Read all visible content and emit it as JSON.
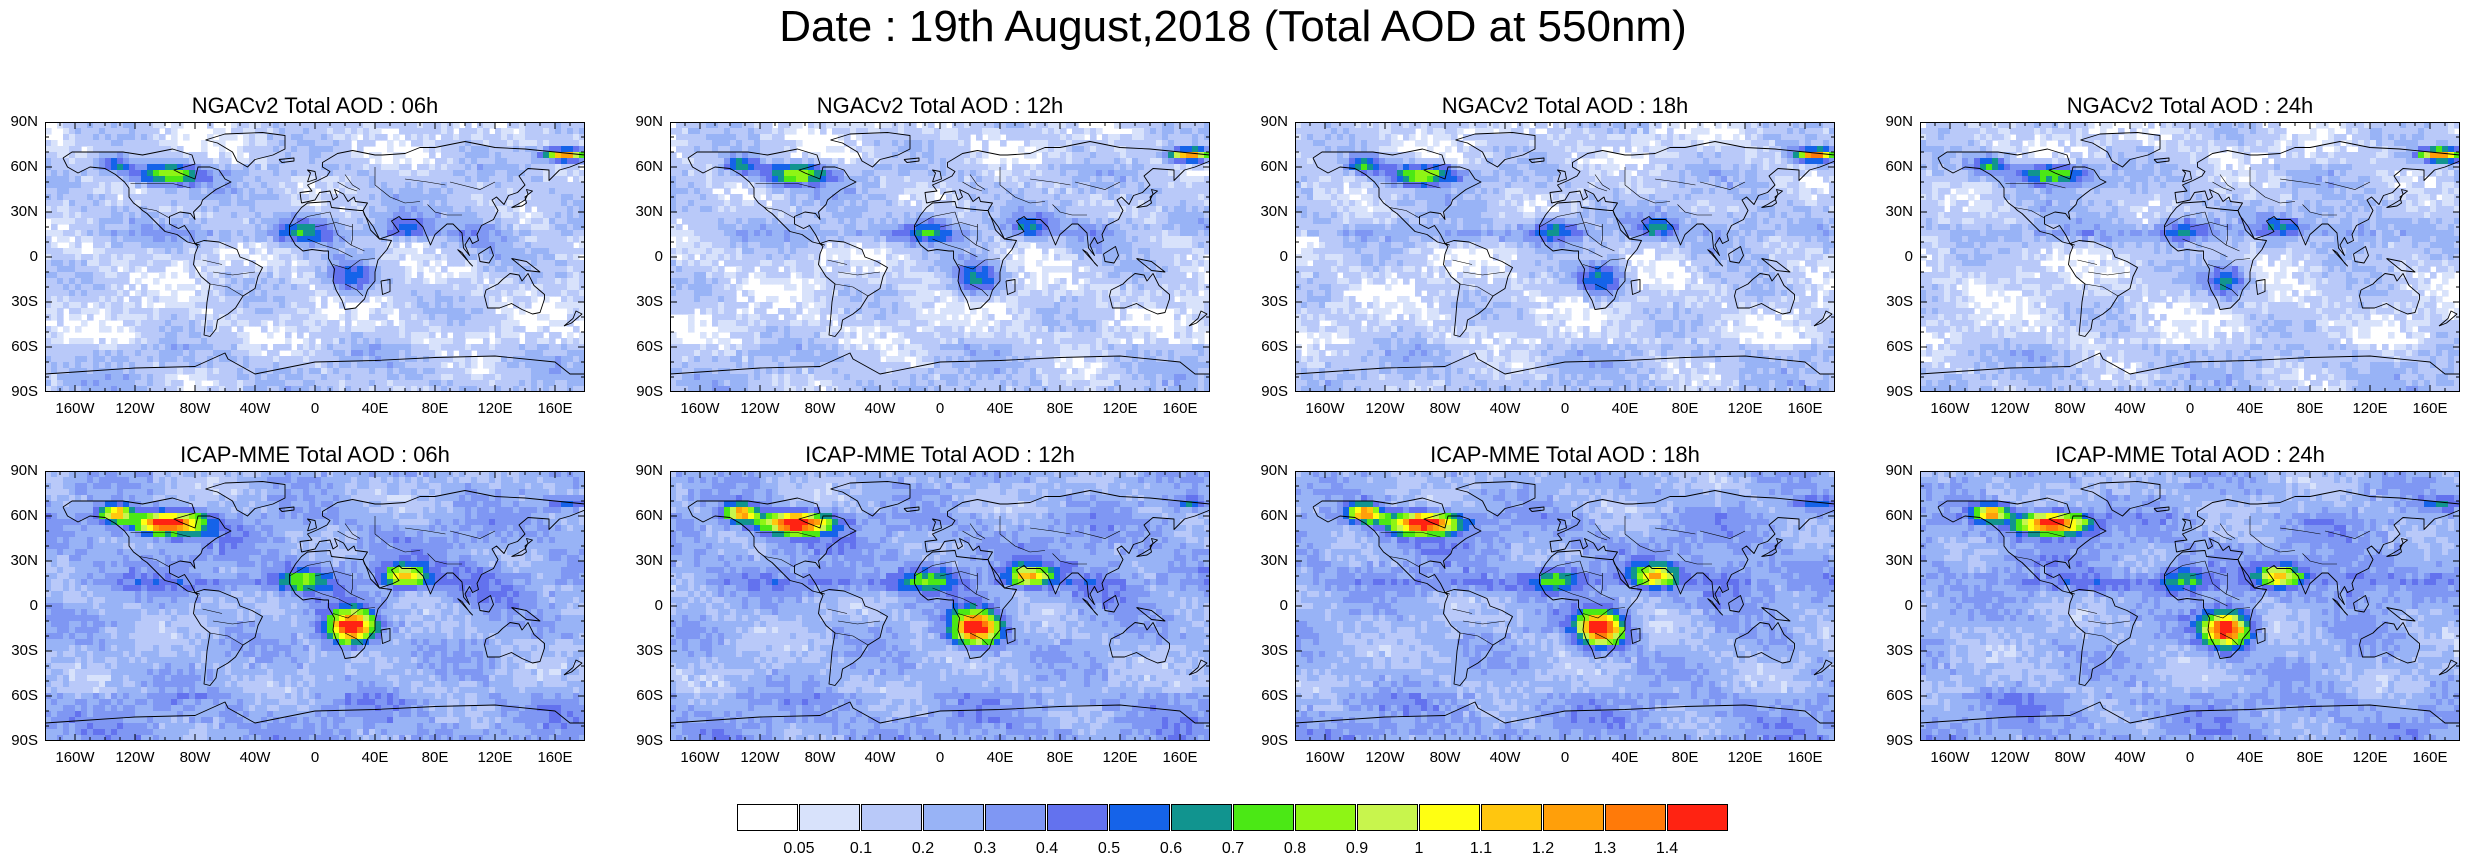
{
  "title": "Date : 19th August,2018 (Total AOD at 550nm)",
  "lat_ticks": [
    "90N",
    "60N",
    "30N",
    "0",
    "30S",
    "60S",
    "90S"
  ],
  "lon_ticks": [
    "160W",
    "120W",
    "80W",
    "40W",
    "0",
    "40E",
    "80E",
    "120E",
    "160E"
  ],
  "lon_tick_values": [
    -160,
    -120,
    -80,
    -40,
    0,
    40,
    80,
    120,
    160
  ],
  "lat_tick_values": [
    90,
    60,
    30,
    0,
    -30,
    -60,
    -90
  ],
  "panels": [
    {
      "model": "NGACv2",
      "title": "NGACv2 Total AOD : 06h"
    },
    {
      "model": "NGACv2",
      "title": "NGACv2 Total AOD : 12h"
    },
    {
      "model": "NGACv2",
      "title": "NGACv2 Total AOD : 18h"
    },
    {
      "model": "NGACv2",
      "title": "NGACv2 Total AOD : 24h"
    },
    {
      "model": "ICAP-MME",
      "title": "ICAP-MME Total AOD : 06h"
    },
    {
      "model": "ICAP-MME",
      "title": "ICAP-MME Total AOD : 12h"
    },
    {
      "model": "ICAP-MME",
      "title": "ICAP-MME Total AOD : 18h"
    },
    {
      "model": "ICAP-MME",
      "title": "ICAP-MME Total AOD : 24h"
    }
  ],
  "colorbar": {
    "labels": [
      "0.05",
      "0.1",
      "0.2",
      "0.3",
      "0.4",
      "0.5",
      "0.6",
      "0.7",
      "0.8",
      "0.9",
      "1",
      "1.1",
      "1.2",
      "1.3",
      "1.4"
    ],
    "colors": [
      "#ffffff",
      "#d8e2fb",
      "#b9c9f9",
      "#98b3f6",
      "#7f97f3",
      "#6372ee",
      "#1563e9",
      "#11948f",
      "#4be815",
      "#8ef515",
      "#c8f54d",
      "#ffff12",
      "#ffc60f",
      "#ff9f0a",
      "#ff7a09",
      "#ff2312"
    ]
  }
}
